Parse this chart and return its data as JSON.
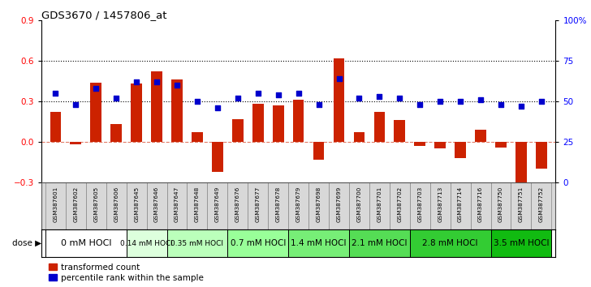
{
  "title": "GDS3670 / 1457806_at",
  "samples": [
    "GSM387601",
    "GSM387602",
    "GSM387605",
    "GSM387606",
    "GSM387645",
    "GSM387646",
    "GSM387647",
    "GSM387648",
    "GSM387649",
    "GSM387676",
    "GSM387677",
    "GSM387678",
    "GSM387679",
    "GSM387698",
    "GSM387699",
    "GSM387700",
    "GSM387701",
    "GSM387702",
    "GSM387703",
    "GSM387713",
    "GSM387714",
    "GSM387716",
    "GSM387750",
    "GSM387751",
    "GSM387752"
  ],
  "transformed_counts": [
    0.22,
    -0.02,
    0.44,
    0.13,
    0.43,
    0.52,
    0.46,
    0.07,
    -0.22,
    0.17,
    0.28,
    0.27,
    0.31,
    -0.13,
    0.62,
    0.07,
    0.22,
    0.16,
    -0.03,
    -0.05,
    -0.12,
    0.09,
    -0.04,
    -0.3,
    -0.2
  ],
  "percentile_ranks": [
    55,
    48,
    58,
    52,
    62,
    62,
    60,
    50,
    46,
    52,
    55,
    54,
    55,
    48,
    64,
    52,
    53,
    52,
    48,
    50,
    50,
    51,
    48,
    47,
    50
  ],
  "dose_groups": [
    {
      "label": "0 mM HOCl",
      "start": 0,
      "end": 4,
      "color": "#ffffff",
      "fontsize": 8
    },
    {
      "label": "0.14 mM HOCl",
      "start": 4,
      "end": 6,
      "color": "#ddffdd",
      "fontsize": 6.5
    },
    {
      "label": "0.35 mM HOCl",
      "start": 6,
      "end": 9,
      "color": "#bbffbb",
      "fontsize": 6.5
    },
    {
      "label": "0.7 mM HOCl",
      "start": 9,
      "end": 12,
      "color": "#99ff99",
      "fontsize": 7.5
    },
    {
      "label": "1.4 mM HOCl",
      "start": 12,
      "end": 15,
      "color": "#77ee77",
      "fontsize": 7.5
    },
    {
      "label": "2.1 mM HOCl",
      "start": 15,
      "end": 18,
      "color": "#55dd55",
      "fontsize": 7.5
    },
    {
      "label": "2.8 mM HOCl",
      "start": 18,
      "end": 22,
      "color": "#33cc33",
      "fontsize": 7.5
    },
    {
      "label": "3.5 mM HOCl",
      "start": 22,
      "end": 25,
      "color": "#11bb11",
      "fontsize": 7.5
    }
  ],
  "bar_color": "#cc2200",
  "dot_color": "#0000cc",
  "ylim_left": [
    -0.3,
    0.9
  ],
  "ylim_right": [
    0,
    100
  ],
  "yticks_left": [
    -0.3,
    0.0,
    0.3,
    0.6,
    0.9
  ],
  "yticks_right": [
    0,
    25,
    50,
    75,
    100
  ],
  "ytick_labels_right": [
    "0",
    "25",
    "50",
    "75",
    "100%"
  ],
  "hline_values": [
    0.3,
    0.6
  ],
  "chart_bg": "#ffffff",
  "label_bg": "#d8d8d8"
}
